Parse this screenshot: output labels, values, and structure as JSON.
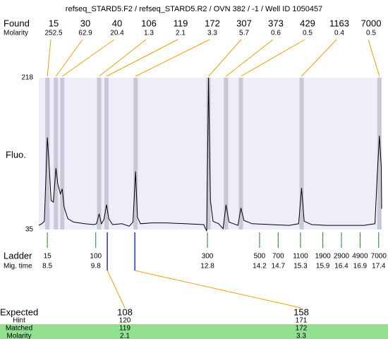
{
  "title": "refseq_STARD5.F2 / refseq_STARD5.R2 / OVN 382 / -1 / Well ID 1050457",
  "found": {
    "label": "Found",
    "molarity_label": "Molarity",
    "peaks": [
      {
        "size": 15,
        "molarity": 252.5,
        "time": 8.5
      },
      {
        "size": 30,
        "molarity": 62.9,
        "time": 8.73
      },
      {
        "size": 40,
        "molarity": 20.4,
        "time": 8.9
      },
      {
        "size": 106,
        "molarity": 1.3,
        "time": 9.89
      },
      {
        "size": 119,
        "molarity": 2.1,
        "time": 10.09
      },
      {
        "size": 172,
        "molarity": 3.3,
        "time": 10.87
      },
      {
        "size": 307,
        "molarity": 5.7,
        "time": 12.83
      },
      {
        "size": 373,
        "molarity": 0.6,
        "time": 13.3
      },
      {
        "size": 429,
        "molarity": 0.5,
        "time": 13.7
      },
      {
        "size": 1163,
        "molarity": 0.4,
        "time": 15.33
      },
      {
        "size": 7000,
        "molarity": 0.5,
        "time": 17.42
      }
    ]
  },
  "chart_data": {
    "type": "line",
    "y_label": "Fluo.",
    "color": "#000000",
    "x": [
      8.27,
      8.35,
      8.42,
      8.47,
      8.5,
      8.54,
      8.6,
      8.66,
      8.73,
      8.78,
      8.85,
      8.9,
      8.95,
      9.05,
      9.2,
      9.5,
      9.75,
      9.82,
      9.89,
      9.95,
      10.02,
      10.09,
      10.15,
      10.25,
      10.5,
      10.7,
      10.8,
      10.87,
      10.92,
      11.0,
      11.3,
      11.7,
      12.2,
      12.7,
      12.78,
      12.83,
      12.88,
      12.95,
      13.1,
      13.22,
      13.3,
      13.38,
      13.5,
      13.62,
      13.7,
      13.78,
      14.0,
      14.5,
      15.0,
      15.25,
      15.33,
      15.4,
      15.6,
      16.0,
      16.5,
      17.0,
      17.3,
      17.36,
      17.42,
      17.47,
      17.48
    ],
    "values": [
      40,
      42,
      45,
      110,
      146,
      120,
      70,
      68,
      109,
      90,
      78,
      84,
      62,
      48,
      44,
      42,
      41,
      42,
      54,
      42,
      47,
      65,
      48,
      41,
      42,
      39,
      44,
      105,
      50,
      42,
      43,
      43,
      42,
      41,
      33,
      218,
      70,
      45,
      42,
      36,
      65,
      44,
      42,
      40,
      61,
      46,
      42,
      41,
      40,
      42,
      85,
      45,
      41,
      40,
      40,
      40,
      42,
      100,
      148,
      110,
      60
    ],
    "xlim": [
      8.27,
      17.48
    ],
    "ylim": [
      35,
      218
    ],
    "yticks": [
      35,
      218
    ]
  },
  "ladder": {
    "label": "Ladder",
    "time_label": "Mig. time",
    "sizes": [
      15,
      100,
      300,
      500,
      700,
      1100,
      1900,
      2900,
      4900,
      7000
    ],
    "times": [
      8.5,
      9.8,
      12.8,
      14.2,
      14.7,
      15.3,
      15.9,
      16.4,
      16.9,
      17.4
    ]
  },
  "expected": {
    "label": "Expected",
    "hint_label": "Hint",
    "matched_label": "Matched",
    "molarity_label": "Molarity",
    "items": [
      {
        "expected": 108,
        "hint": 120,
        "matched": 119,
        "molarity": 2.1,
        "time": 10.11
      },
      {
        "expected": 158,
        "hint": 171,
        "matched": 172,
        "molarity": 3.3,
        "time": 10.85
      }
    ]
  }
}
